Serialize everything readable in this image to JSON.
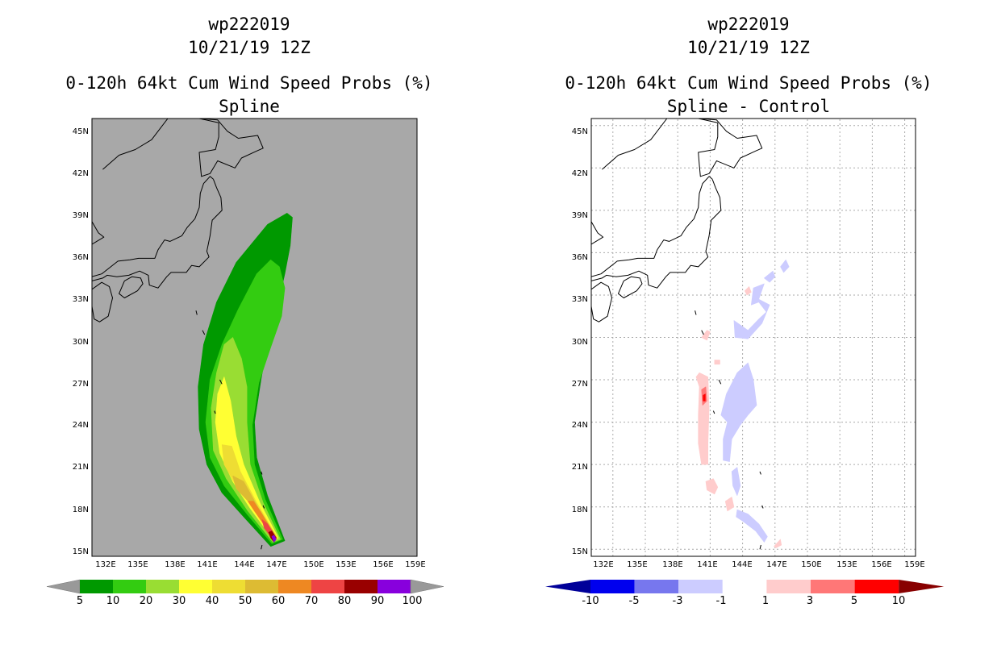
{
  "chart_data": [
    {
      "type": "heatmap",
      "storm_id": "wp222019",
      "date_label": "10/21/19 12Z",
      "title": "0-120h 64kt Cum Wind Speed Probs (%)",
      "subtitle": "Spline",
      "lon_range": [
        130,
        160
      ],
      "lat_range": [
        14.5,
        45.5
      ],
      "x_ticks": [
        "132E",
        "135E",
        "138E",
        "141E",
        "144E",
        "147E",
        "150E",
        "153E",
        "156E",
        "159E"
      ],
      "y_ticks": [
        "15N",
        "18N",
        "21N",
        "24N",
        "27N",
        "30N",
        "33N",
        "36N",
        "39N",
        "42N",
        "45N"
      ],
      "grid": false,
      "background_color": "#a8a8a8",
      "colorbar": {
        "labels": [
          "5",
          "10",
          "20",
          "30",
          "40",
          "50",
          "60",
          "70",
          "80",
          "90",
          "100"
        ],
        "colors": [
          "#009900",
          "#33cc11",
          "#99dd33",
          "#ffff33",
          "#eedd33",
          "#ddbb33",
          "#ee8822",
          "#ee4444",
          "#990000",
          "#8800dd"
        ],
        "end_color": "#999999"
      },
      "contour_levels": [
        {
          "level": 5,
          "color": "#009900",
          "points": [
            [
              146.5,
              15.2
            ],
            [
              147.8,
              15.6
            ],
            [
              146.2,
              18.8
            ],
            [
              145.2,
              21.5
            ],
            [
              145.0,
              24.0
            ],
            [
              145.6,
              27.0
            ],
            [
              146.3,
              30.0
            ],
            [
              147.2,
              32.5
            ],
            [
              147.8,
              34.5
            ],
            [
              148.3,
              36.5
            ],
            [
              148.5,
              38.5
            ],
            [
              148.0,
              38.8
            ],
            [
              146.2,
              38.0
            ],
            [
              143.3,
              35.3
            ],
            [
              141.5,
              32.5
            ],
            [
              140.3,
              29.5
            ],
            [
              139.8,
              26.5
            ],
            [
              139.9,
              23.5
            ],
            [
              140.6,
              21.0
            ],
            [
              142.0,
              19.0
            ],
            [
              144.0,
              17.3
            ]
          ]
        },
        {
          "level": 10,
          "color": "#33cc11",
          "points": [
            [
              146.6,
              15.4
            ],
            [
              147.6,
              15.7
            ],
            [
              146.0,
              18.5
            ],
            [
              145.0,
              21.0
            ],
            [
              144.8,
              23.8
            ],
            [
              145.4,
              26.8
            ],
            [
              146.5,
              29.3
            ],
            [
              147.5,
              31.5
            ],
            [
              147.8,
              33.5
            ],
            [
              147.3,
              35.0
            ],
            [
              146.5,
              35.5
            ],
            [
              145.2,
              34.5
            ],
            [
              143.5,
              32.0
            ],
            [
              142.0,
              29.5
            ],
            [
              140.9,
              27.0
            ],
            [
              140.5,
              24.0
            ],
            [
              140.9,
              21.5
            ],
            [
              142.2,
              19.5
            ],
            [
              144.3,
              17.5
            ]
          ]
        },
        {
          "level": 20,
          "color": "#99dd33",
          "points": [
            [
              146.7,
              15.5
            ],
            [
              147.4,
              15.7
            ],
            [
              145.8,
              18.3
            ],
            [
              144.6,
              21.0
            ],
            [
              144.3,
              24.0
            ],
            [
              144.3,
              26.5
            ],
            [
              143.8,
              28.5
            ],
            [
              143.0,
              30.0
            ],
            [
              142.2,
              29.5
            ],
            [
              141.5,
              27.5
            ],
            [
              141.0,
              25.0
            ],
            [
              141.2,
              22.0
            ],
            [
              142.4,
              20.0
            ],
            [
              144.4,
              17.7
            ]
          ]
        },
        {
          "level": 30,
          "color": "#ffff33",
          "points": [
            [
              146.8,
              15.6
            ],
            [
              147.2,
              15.8
            ],
            [
              145.5,
              18.3
            ],
            [
              144.0,
              21.0
            ],
            [
              143.3,
              23.0
            ],
            [
              142.8,
              25.5
            ],
            [
              142.2,
              27.2
            ],
            [
              141.6,
              26.0
            ],
            [
              141.4,
              24.0
            ],
            [
              141.8,
              21.8
            ],
            [
              143.0,
              19.8
            ],
            [
              144.6,
              17.9
            ]
          ]
        },
        {
          "level": 40,
          "color": "#eedd33",
          "points": [
            [
              146.9,
              15.7
            ],
            [
              147.1,
              15.8
            ],
            [
              145.2,
              18.3
            ],
            [
              143.7,
              20.5
            ],
            [
              142.9,
              22.3
            ],
            [
              142.0,
              22.4
            ],
            [
              142.2,
              21.0
            ],
            [
              143.3,
              19.5
            ],
            [
              144.8,
              18.0
            ]
          ]
        },
        {
          "level": 50,
          "color": "#ddbb33",
          "points": [
            [
              146.9,
              15.7
            ],
            [
              147.1,
              15.8
            ],
            [
              145.3,
              18.0
            ],
            [
              144.0,
              19.8
            ],
            [
              143.0,
              20.2
            ],
            [
              143.3,
              19.3
            ],
            [
              144.9,
              18.0
            ]
          ]
        },
        {
          "level": 60,
          "color": "#ee8822",
          "points": [
            [
              146.9,
              15.7
            ],
            [
              147.0,
              15.8
            ],
            [
              145.6,
              17.6
            ],
            [
              144.9,
              18.4
            ],
            [
              144.4,
              18.4
            ],
            [
              145.0,
              17.7
            ],
            [
              146.0,
              16.6
            ]
          ]
        },
        {
          "level": 70,
          "color": "#ee4444",
          "points": [
            [
              146.9,
              15.6
            ],
            [
              147.0,
              15.8
            ],
            [
              146.2,
              16.8
            ],
            [
              145.7,
              17.1
            ],
            [
              145.9,
              16.5
            ],
            [
              146.4,
              16.0
            ]
          ]
        },
        {
          "level": 80,
          "color": "#990000",
          "points": [
            [
              146.8,
              15.5
            ],
            [
              147.0,
              15.8
            ],
            [
              146.6,
              16.3
            ],
            [
              146.3,
              16.2
            ],
            [
              146.5,
              15.8
            ]
          ]
        },
        {
          "level": 90,
          "color": "#8800dd",
          "points": [
            [
              146.8,
              15.5
            ],
            [
              147.0,
              15.7
            ],
            [
              146.8,
              16.0
            ],
            [
              146.6,
              15.9
            ]
          ]
        }
      ]
    },
    {
      "type": "heatmap",
      "storm_id": "wp222019",
      "date_label": "10/21/19 12Z",
      "title": "0-120h 64kt Cum Wind Speed Probs (%)",
      "subtitle": "Spline - Control",
      "lon_range": [
        130,
        160
      ],
      "lat_range": [
        14.5,
        45.5
      ],
      "x_ticks": [
        "132E",
        "135E",
        "138E",
        "141E",
        "144E",
        "147E",
        "150E",
        "153E",
        "156E",
        "159E"
      ],
      "y_ticks": [
        "15N",
        "18N",
        "21N",
        "24N",
        "27N",
        "30N",
        "33N",
        "36N",
        "39N",
        "42N",
        "45N"
      ],
      "grid": true,
      "background_color": "#ffffff",
      "colorbar": {
        "labels": [
          "-10",
          "-5",
          "-3",
          "-1",
          "1",
          "3",
          "5",
          "10"
        ],
        "colors": [
          "#0000ee",
          "#7777ee",
          "#ccccff",
          "#ffffff",
          "#ffcccc",
          "#ff7777",
          "#ff0000"
        ],
        "low_end_color": "#000099",
        "high_end_color": "#880000"
      },
      "contour_levels": [
        {
          "level": "1 to 3",
          "color": "#ffcccc",
          "points": [
            [
              140.0,
              27.5
            ],
            [
              140.8,
              27.2
            ],
            [
              140.9,
              25.0
            ],
            [
              140.8,
              22.5
            ],
            [
              140.8,
              21.0
            ],
            [
              140.2,
              21.0
            ],
            [
              139.9,
              22.5
            ],
            [
              139.9,
              24.5
            ],
            [
              140.0,
              26.5
            ],
            [
              139.7,
              27.2
            ]
          ]
        },
        {
          "level": "1 to 3",
          "color": "#ffcccc",
          "points": [
            [
              140.2,
              30.0
            ],
            [
              140.7,
              30.5
            ],
            [
              141.0,
              30.4
            ],
            [
              140.7,
              29.8
            ]
          ]
        },
        {
          "level": "1 to 3",
          "color": "#ffcccc",
          "points": [
            [
              140.6,
              19.8
            ],
            [
              141.3,
              20.0
            ],
            [
              141.7,
              19.4
            ],
            [
              141.4,
              18.9
            ],
            [
              140.7,
              19.2
            ]
          ]
        },
        {
          "level": "1 to 3",
          "color": "#ffcccc",
          "points": [
            [
              142.4,
              18.4
            ],
            [
              143.0,
              18.7
            ],
            [
              143.2,
              18.0
            ],
            [
              142.6,
              17.7
            ]
          ]
        },
        {
          "level": "1 to 3",
          "color": "#ffcccc",
          "points": [
            [
              144.2,
              33.3
            ],
            [
              144.6,
              33.6
            ],
            [
              144.8,
              33.2
            ],
            [
              144.4,
              33.0
            ]
          ]
        },
        {
          "level": "1 to 3",
          "color": "#ffcccc",
          "points": [
            [
              146.9,
              15.2
            ],
            [
              147.5,
              15.7
            ],
            [
              147.6,
              15.3
            ],
            [
              147.1,
              15.1
            ]
          ]
        },
        {
          "level": "1 to 3",
          "color": "#ffcccc",
          "points": [
            [
              141.4,
              28.4
            ],
            [
              141.9,
              28.4
            ],
            [
              141.9,
              28.1
            ],
            [
              141.4,
              28.1
            ]
          ]
        },
        {
          "level": "3 to 5",
          "color": "#ff7777",
          "points": [
            [
              140.2,
              26.3
            ],
            [
              140.6,
              26.5
            ],
            [
              140.7,
              25.5
            ],
            [
              140.3,
              25.2
            ]
          ]
        },
        {
          "level": "5 to 10",
          "color": "#ff0000",
          "points": [
            [
              140.35,
              25.9
            ],
            [
              140.55,
              26.0
            ],
            [
              140.55,
              25.5
            ],
            [
              140.35,
              25.5
            ]
          ]
        },
        {
          "level": "-3 to -1",
          "color": "#ccccff",
          "points": [
            [
              142.0,
              24.5
            ],
            [
              142.5,
              26.0
            ],
            [
              143.5,
              27.5
            ],
            [
              144.5,
              28.2
            ],
            [
              145.0,
              27.0
            ],
            [
              145.3,
              25.2
            ],
            [
              144.5,
              24.5
            ],
            [
              143.8,
              23.8
            ],
            [
              143.0,
              22.8
            ],
            [
              142.8,
              21.2
            ],
            [
              142.2,
              21.3
            ],
            [
              142.2,
              22.8
            ],
            [
              142.6,
              24.0
            ]
          ]
        },
        {
          "level": "-3 to -1",
          "color": "#ccccff",
          "points": [
            [
              143.0,
              20.5
            ],
            [
              143.5,
              20.8
            ],
            [
              143.8,
              19.5
            ],
            [
              143.5,
              18.8
            ],
            [
              143.1,
              19.5
            ]
          ]
        },
        {
          "level": "-3 to -1",
          "color": "#ccccff",
          "points": [
            [
              143.5,
              17.8
            ],
            [
              144.5,
              17.5
            ],
            [
              145.5,
              16.8
            ],
            [
              146.3,
              15.9
            ],
            [
              146.0,
              15.5
            ],
            [
              145.2,
              16.3
            ],
            [
              144.0,
              17.0
            ],
            [
              143.4,
              17.3
            ]
          ]
        },
        {
          "level": "-3 to -1",
          "color": "#ccccff",
          "points": [
            [
              143.2,
              31.2
            ],
            [
              144.5,
              30.5
            ],
            [
              145.5,
              31.3
            ],
            [
              146.2,
              31.8
            ],
            [
              145.5,
              32.5
            ],
            [
              144.8,
              32.3
            ],
            [
              145.0,
              33.5
            ],
            [
              146.0,
              33.8
            ],
            [
              145.5,
              32.7
            ],
            [
              146.5,
              32.3
            ],
            [
              145.8,
              31.0
            ],
            [
              144.5,
              29.9
            ],
            [
              143.3,
              30.0
            ]
          ]
        },
        {
          "level": "-3 to -1",
          "color": "#ccccff",
          "points": [
            [
              146.0,
              34.2
            ],
            [
              146.8,
              34.7
            ],
            [
              147.0,
              34.3
            ],
            [
              146.5,
              33.9
            ]
          ]
        },
        {
          "level": "-3 to -1",
          "color": "#ccccff",
          "points": [
            [
              147.5,
              35.0
            ],
            [
              148.0,
              35.5
            ],
            [
              148.3,
              35.0
            ],
            [
              147.8,
              34.6
            ]
          ]
        }
      ]
    }
  ]
}
